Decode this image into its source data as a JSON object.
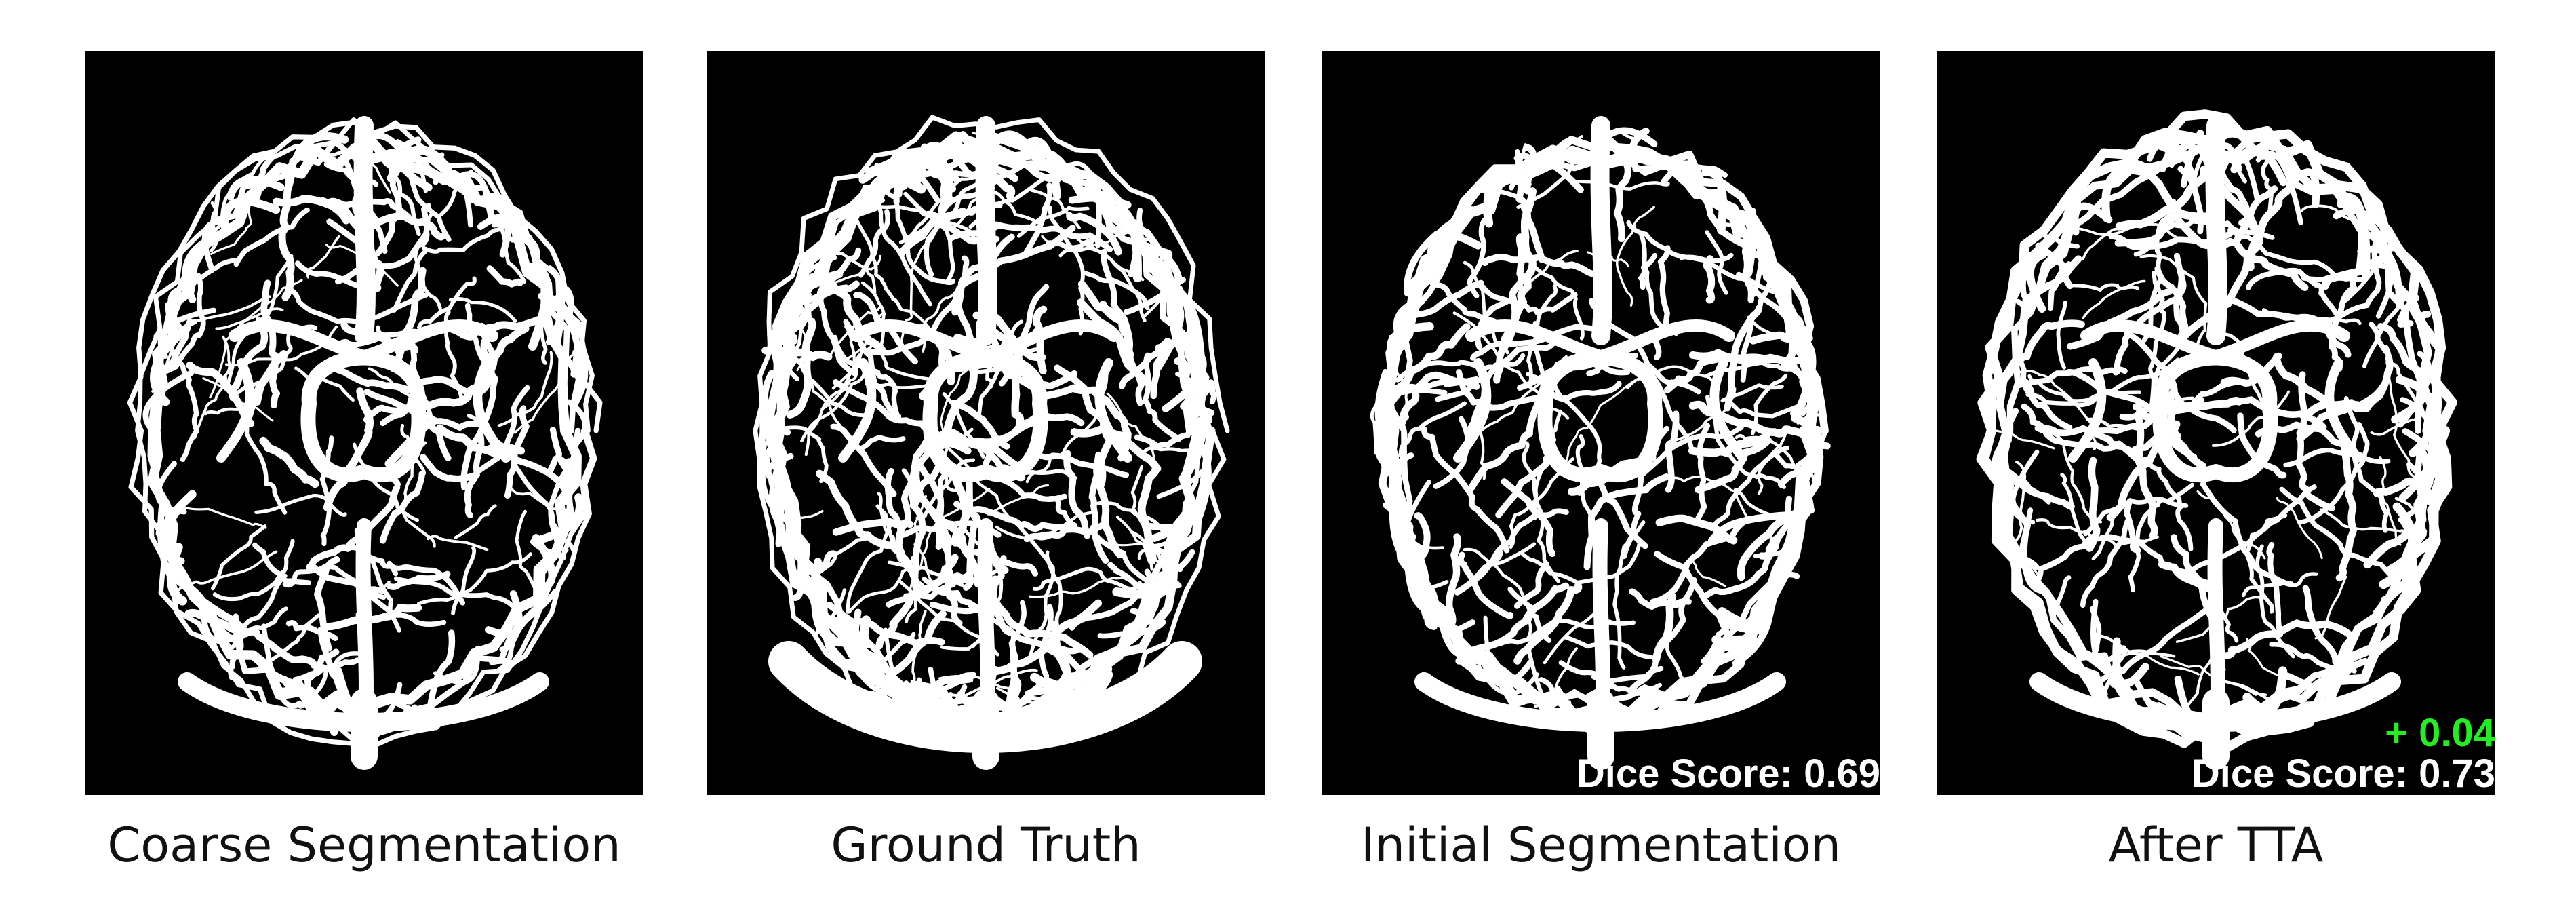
{
  "panels": [
    {
      "caption": "Coarse Segmentation",
      "density": "medium"
    },
    {
      "caption": "Ground Truth",
      "density": "high"
    },
    {
      "caption": "Initial Segmentation",
      "density": "medium",
      "dice": "Dice Score: 0.69"
    },
    {
      "caption": "After TTA",
      "density": "medium",
      "dice": "Dice Score: 0.73",
      "delta": "+ 0.04"
    }
  ],
  "colors": {
    "background": "#000000",
    "vessels": "#ffffff",
    "delta": "#22ee22"
  }
}
